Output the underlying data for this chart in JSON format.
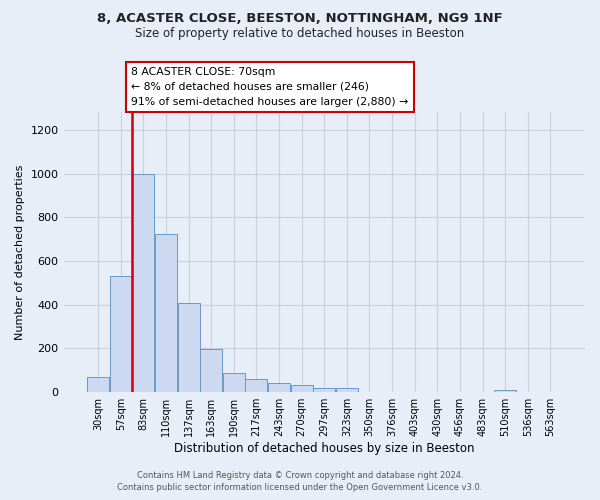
{
  "title": "8, ACASTER CLOSE, BEESTON, NOTTINGHAM, NG9 1NF",
  "subtitle": "Size of property relative to detached houses in Beeston",
  "xlabel": "Distribution of detached houses by size in Beeston",
  "ylabel": "Number of detached properties",
  "bar_labels": [
    "30sqm",
    "57sqm",
    "83sqm",
    "110sqm",
    "137sqm",
    "163sqm",
    "190sqm",
    "217sqm",
    "243sqm",
    "270sqm",
    "297sqm",
    "323sqm",
    "350sqm",
    "376sqm",
    "403sqm",
    "430sqm",
    "456sqm",
    "483sqm",
    "510sqm",
    "536sqm",
    "563sqm"
  ],
  "bar_values": [
    70,
    530,
    1000,
    725,
    410,
    198,
    90,
    60,
    43,
    33,
    18,
    18,
    0,
    0,
    0,
    0,
    0,
    0,
    8,
    0,
    0
  ],
  "bar_color": "#ccd9f0",
  "bar_edge_color": "#6699cc",
  "vline_color": "#cc0000",
  "ylim": [
    0,
    1280
  ],
  "yticks": [
    0,
    200,
    400,
    600,
    800,
    1000,
    1200
  ],
  "annotation_text": "8 ACASTER CLOSE: 70sqm\n← 8% of detached houses are smaller (246)\n91% of semi-detached houses are larger (2,880) →",
  "annotation_box_color": "#ffffff",
  "annotation_box_edge": "#cc0000",
  "footer_line1": "Contains HM Land Registry data © Crown copyright and database right 2024.",
  "footer_line2": "Contains public sector information licensed under the Open Government Licence v3.0.",
  "background_color": "#e8eef8",
  "plot_bg_color": "#e8eef8",
  "grid_color": "#c8d0e0"
}
